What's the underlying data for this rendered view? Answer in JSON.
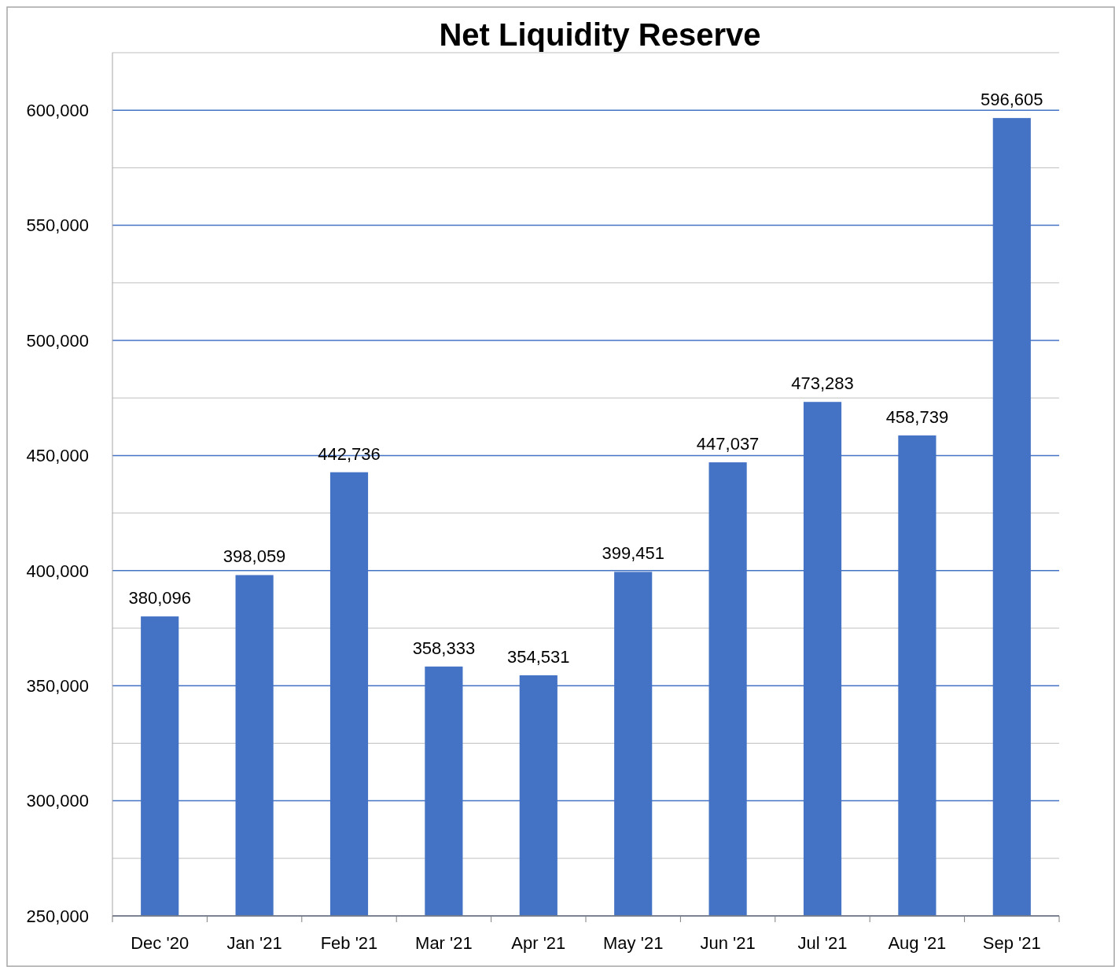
{
  "chart_data": {
    "type": "bar",
    "title": "Net Liquidity Reserve",
    "categories": [
      "Dec '20",
      "Jan '21",
      "Feb '21",
      "Mar '21",
      "Apr '21",
      "May '21",
      "Jun '21",
      "Jul '21",
      "Aug '21",
      "Sep '21"
    ],
    "values": [
      380096,
      398059,
      442736,
      358333,
      354531,
      399451,
      447037,
      473283,
      458739,
      596605
    ],
    "color": "#4472c4",
    "ylim": [
      250000,
      625000
    ],
    "yticks": [
      {
        "value": 250000,
        "label": "250,000"
      },
      {
        "value": 275000,
        "label": null
      },
      {
        "value": 300000,
        "label": "300,000"
      },
      {
        "value": 325000,
        "label": null
      },
      {
        "value": 350000,
        "label": "350,000"
      },
      {
        "value": 375000,
        "label": null
      },
      {
        "value": 400000,
        "label": "400,000"
      },
      {
        "value": 425000,
        "label": null
      },
      {
        "value": 450000,
        "label": "450,000"
      },
      {
        "value": 475000,
        "label": null
      },
      {
        "value": 500000,
        "label": "500,000"
      },
      {
        "value": 525000,
        "label": null
      },
      {
        "value": 550000,
        "label": "550,000"
      },
      {
        "value": 575000,
        "label": null
      },
      {
        "value": 600000,
        "label": "600,000"
      },
      {
        "value": 625000,
        "label": null
      }
    ],
    "value_labels": [
      "380,096",
      "398,059",
      "442,736",
      "358,333",
      "354,531",
      "399,451",
      "447,037",
      "473,283",
      "458,739",
      "596,605"
    ],
    "grid": true
  }
}
